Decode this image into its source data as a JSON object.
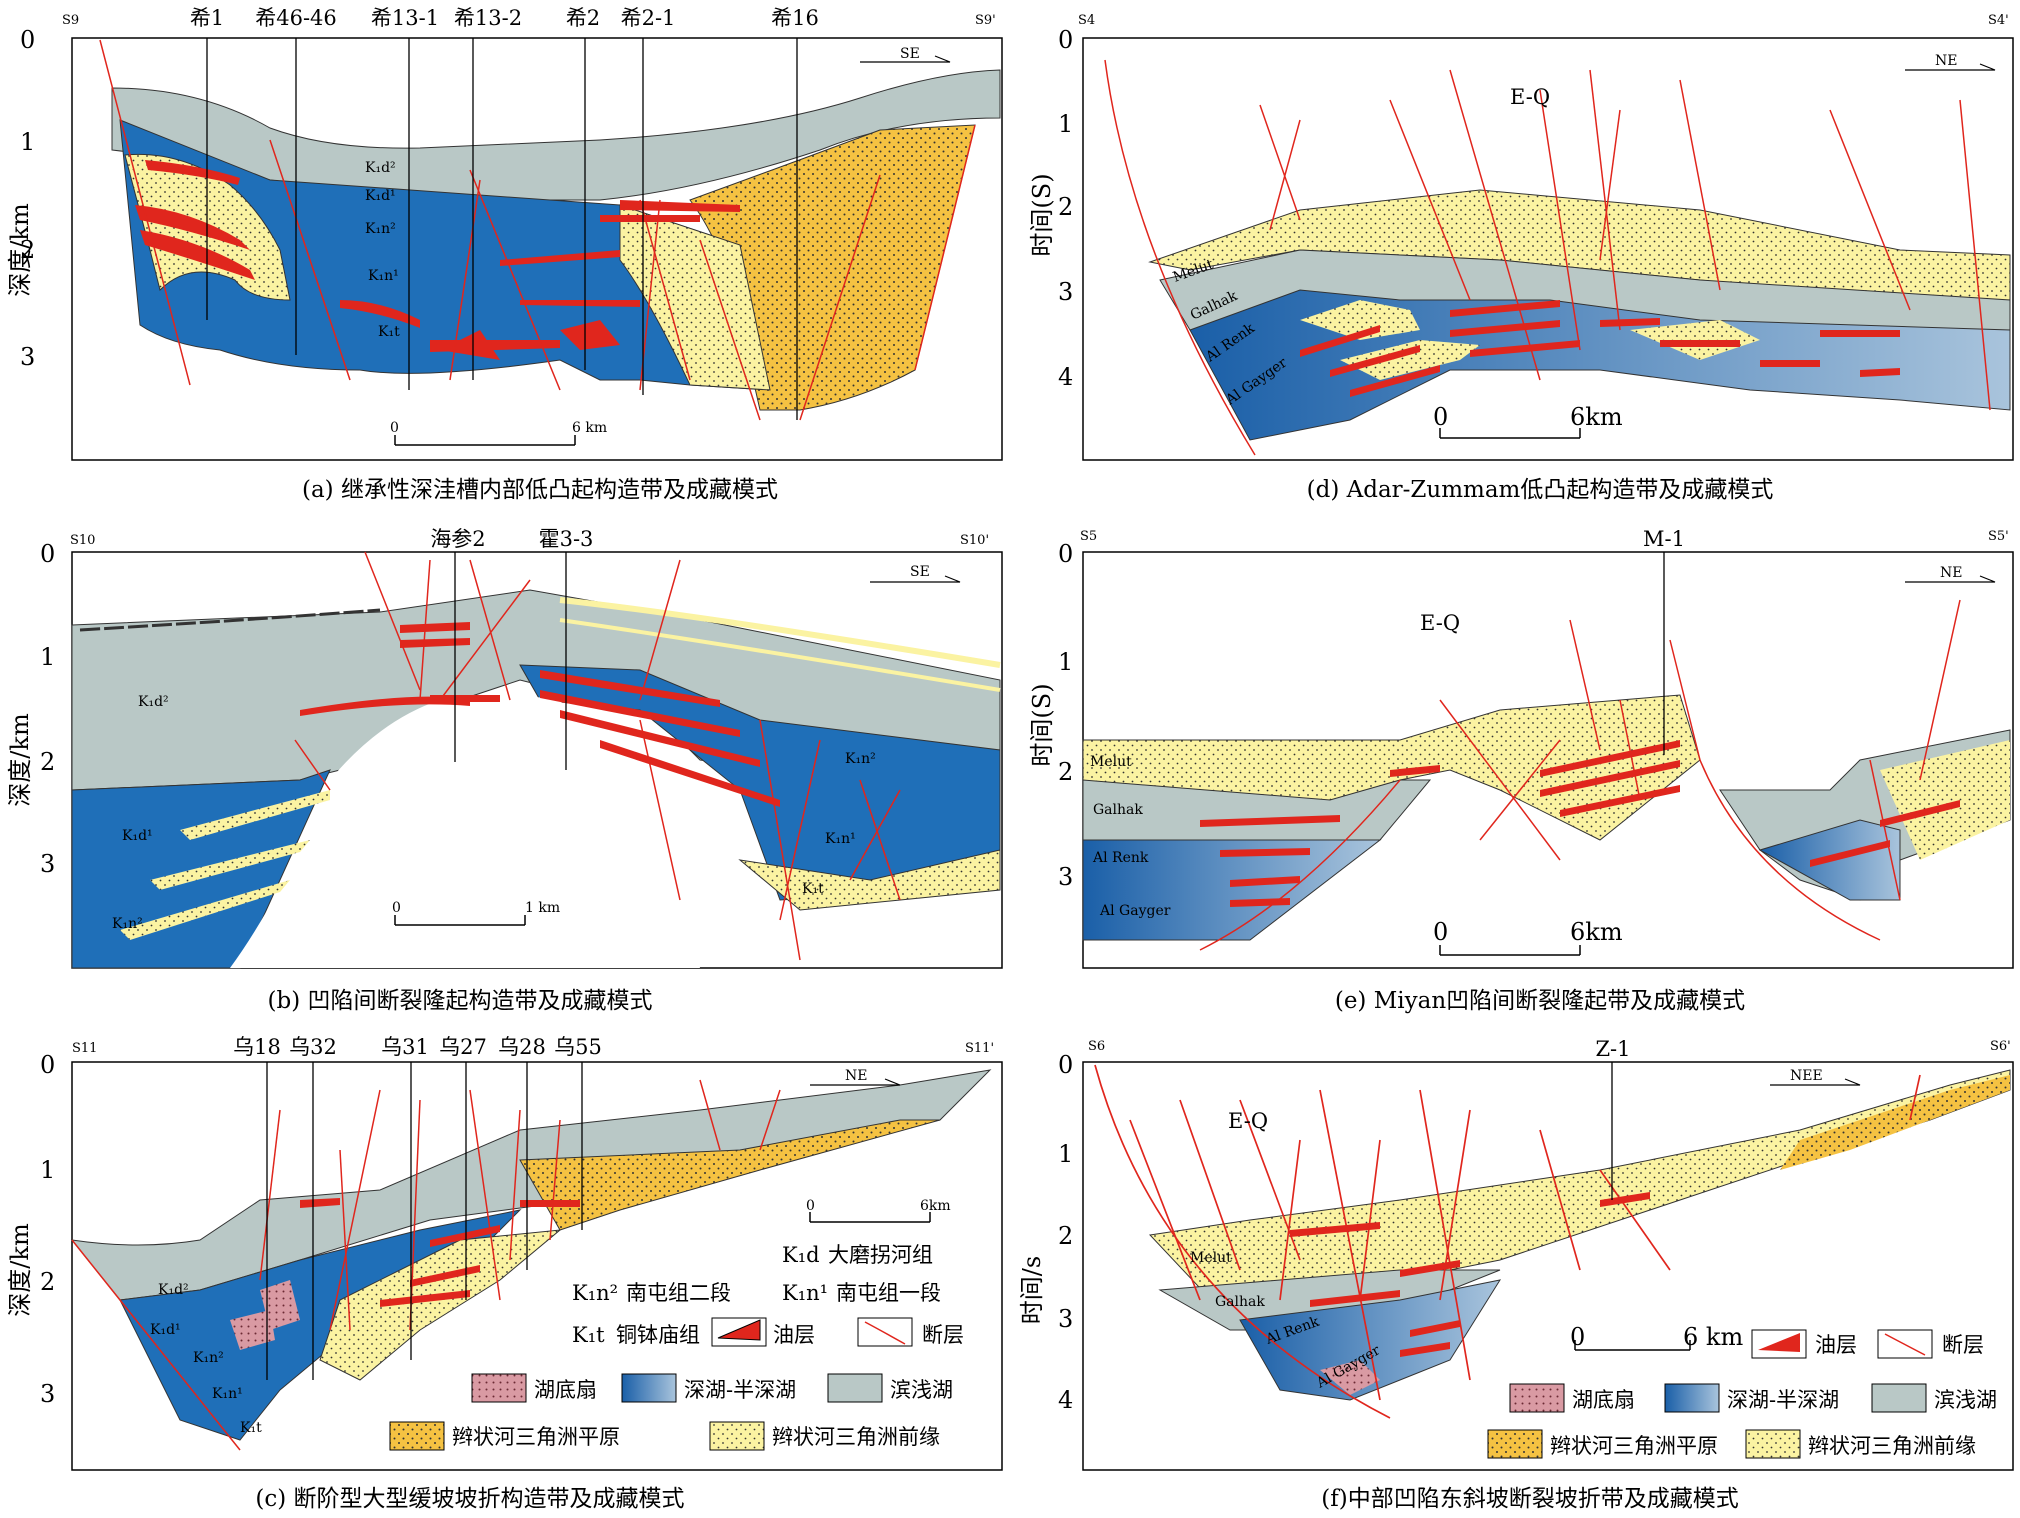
{
  "colors": {
    "deep_lake": "#1f6fb8",
    "shallow_lake": "#b9c8c6",
    "delta_front": "#fbf3a2",
    "delta_plain": "#f5c242",
    "oil": "#e0261d",
    "fault": "#e0261d",
    "fan": "#d99aa3",
    "frame": "#000000"
  },
  "panels": {
    "a": {
      "section_left": "S9",
      "section_right": "S9'",
      "caption": "(a) 继承性深洼槽内部低凸起构造带及成藏模式",
      "direction": "SE",
      "ylabel": "深度/km",
      "yticks": [
        "0",
        "1",
        "2",
        "3"
      ],
      "wells": [
        "希1",
        "希46-46",
        "希13-1",
        "希13-2",
        "希2",
        "希2-1",
        "希16"
      ],
      "units": [
        "K₁d²",
        "K₁d¹",
        "K₁n²",
        "K₁n¹",
        "K₁t"
      ],
      "scale": {
        "left": "0",
        "right": "6 km"
      }
    },
    "b": {
      "section_left": "S10",
      "section_right": "S10'",
      "caption": "(b) 凹陷间断裂隆起构造带及成藏模式",
      "direction": "SE",
      "ylabel": "深度/km",
      "yticks": [
        "0",
        "1",
        "2",
        "3"
      ],
      "wells": [
        "海参2",
        "霍3-3"
      ],
      "units": [
        "K₁d²",
        "K₁d¹",
        "K₁n²",
        "K₁n²",
        "K₁n¹",
        "K₁t"
      ],
      "scale": {
        "left": "0",
        "right": "1 km"
      }
    },
    "c": {
      "section_left": "S11",
      "section_right": "S11'",
      "caption": "(c) 断阶型大型缓坡坡折构造带及成藏模式",
      "direction": "NE",
      "ylabel": "深度/km",
      "yticks": [
        "0",
        "1",
        "2",
        "3"
      ],
      "wells": [
        "乌18",
        "乌32",
        "乌31",
        "乌27",
        "乌28",
        "乌55"
      ],
      "units": [
        "K₁d²",
        "K₁d¹",
        "K₁n²",
        "K₁n¹",
        "K₁t"
      ],
      "scale": {
        "left": "0",
        "right": "6km"
      },
      "legend_formations": [
        {
          "code": "K₁d",
          "name": "大磨拐河组"
        },
        {
          "code": "K₁n²",
          "name": "南屯组二段"
        },
        {
          "code": "K₁n¹",
          "name": "南屯组一段"
        },
        {
          "code": "K₁t",
          "name": "铜钵庙组"
        }
      ],
      "legend_items": [
        "油层",
        "断层",
        "湖底扇",
        "深湖-半深湖",
        "滨浅湖",
        "辫状河三角洲平原",
        "辫状河三角洲前缘"
      ]
    },
    "d": {
      "section_left": "S4",
      "section_right": "S4'",
      "caption": "(d) Adar-Zummam低凸起构造带及成藏模式",
      "direction": "NE",
      "ylabel": "时间(S)",
      "yticks": [
        "0",
        "1",
        "2",
        "3",
        "4"
      ],
      "units": [
        "E-Q",
        "Melut",
        "Galhak",
        "Al Renk",
        "Al Gayger"
      ],
      "scale": {
        "left": "0",
        "right": "6km"
      }
    },
    "e": {
      "section_left": "S5",
      "section_right": "S5'",
      "caption": "(e) Miyan凹陷间断裂隆起带及成藏模式",
      "direction": "NE",
      "ylabel": "时间(S)",
      "yticks": [
        "0",
        "1",
        "2",
        "3"
      ],
      "wells": [
        "M-1"
      ],
      "units": [
        "E-Q",
        "Melut",
        "Galhak",
        "Al Renk",
        "Al Gayger"
      ],
      "scale": {
        "left": "0",
        "right": "6km"
      }
    },
    "f": {
      "section_left": "S6",
      "section_right": "S6'",
      "caption": "(f)中部凹陷东斜坡断裂坡折带及成藏模式",
      "direction": "NEE",
      "ylabel": "时间/s",
      "yticks": [
        "0",
        "1",
        "2",
        "3",
        "4"
      ],
      "wells": [
        "Z-1"
      ],
      "units": [
        "E-Q",
        "Melut",
        "Galhak",
        "Al Renk",
        "Al Gayger"
      ],
      "scale": {
        "left": "0",
        "right": "6 km"
      },
      "legend_items": [
        "油层",
        "断层",
        "湖底扇",
        "深湖-半深湖",
        "滨浅湖",
        "辫状河三角洲平原",
        "辫状河三角洲前缘"
      ]
    }
  }
}
